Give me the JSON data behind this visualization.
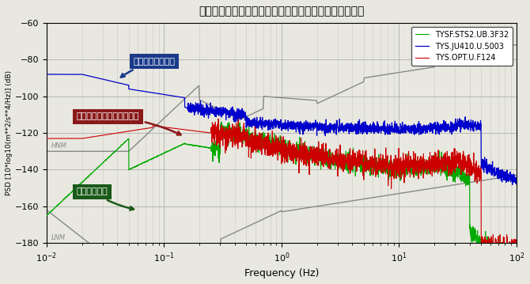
{
  "title": "広帯域地震計・サーボ式加速度計とのノイズレベル比較",
  "xlabel": "Frequency (Hz)",
  "ylabel": "PSD [10*log10(m**2/s**4/Hz)] (dB)",
  "xlim": [
    0.01,
    100
  ],
  "ylim": [
    -180,
    -60
  ],
  "yticks": [
    -180,
    -160,
    -140,
    -120,
    -100,
    -80,
    -60
  ],
  "legend_labels": [
    "TYSF.STS2.UB.3F32",
    "TYS.JU410.U.5003",
    "TYS.OPT.U.F124"
  ],
  "legend_colors": [
    "#00aa00",
    "#0000cc",
    "#cc0000"
  ],
  "annotation_servo": "サーボ式加速度計",
  "annotation_optical": "光センサ地震計測システム",
  "annotation_broadband": "広帯域地震計",
  "anno_servo_color": "#1a3a8a",
  "anno_optical_color": "#8a1a1a",
  "anno_broadband_color": "#1a5a1a",
  "hnm_label": "HNM",
  "lnm_label": "LNM",
  "bg_color": "#e8e8e0",
  "plot_bg_color": "#e8e8e0",
  "grid_color": "#aaaaaa"
}
